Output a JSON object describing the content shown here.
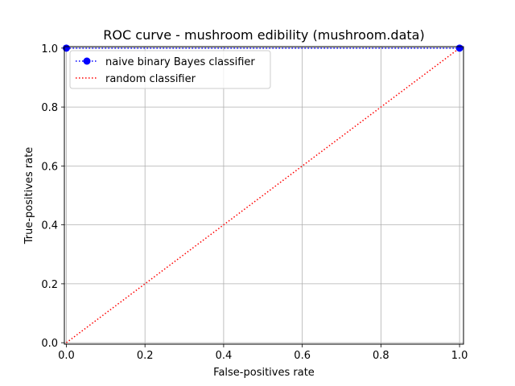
{
  "chart_data": {
    "type": "line",
    "title": "ROC curve - mushroom edibility (mushroom.data)",
    "xlabel": "False-positives rate",
    "ylabel": "True-positives rate",
    "xlim": [
      -0.005,
      1.01
    ],
    "ylim": [
      -0.005,
      1.005
    ],
    "xticks": [
      0.0,
      0.2,
      0.4,
      0.6,
      0.8,
      1.0
    ],
    "xtick_labels": [
      "0.0",
      "0.2",
      "0.4",
      "0.6",
      "0.8",
      "1.0"
    ],
    "yticks": [
      0.0,
      0.2,
      0.4,
      0.6,
      0.8,
      1.0
    ],
    "ytick_labels": [
      "0.0",
      "0.2",
      "0.4",
      "0.6",
      "0.8",
      "1.0"
    ],
    "grid": true,
    "legend_position": "top-left",
    "series": [
      {
        "name": "naive binary Bayes classifier",
        "color": "#0000ff",
        "linestyle": "dotted",
        "marker": "circle",
        "x": [
          0.0,
          1.0
        ],
        "y": [
          1.0,
          1.0
        ]
      },
      {
        "name": "random classifier",
        "color": "#ff0000",
        "linestyle": "dotted",
        "marker": "none",
        "x": [
          0.0,
          1.0
        ],
        "y": [
          0.0,
          1.0
        ]
      }
    ]
  }
}
